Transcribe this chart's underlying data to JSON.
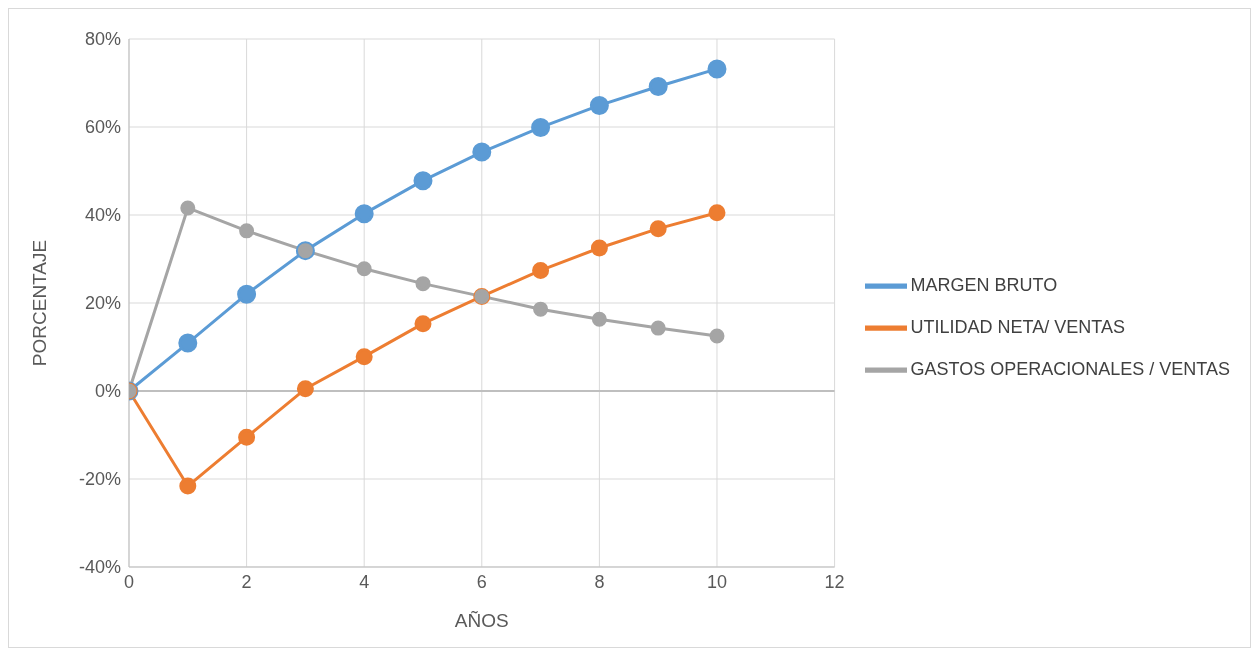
{
  "chart_data": {
    "type": "line",
    "xlabel": "AÑOS",
    "ylabel": "PORCENTAJE",
    "x": [
      0,
      1,
      2,
      3,
      4,
      5,
      6,
      7,
      8,
      9,
      10
    ],
    "series": [
      {
        "name": "MARGEN BRUTO",
        "color": "#5b9bd5",
        "values": [
          0,
          10.9,
          22.0,
          31.9,
          40.3,
          47.8,
          54.3,
          59.9,
          64.9,
          69.2,
          73.2
        ]
      },
      {
        "name": "UTILIDAD NETA/ VENTAS",
        "color": "#ed7d31",
        "values": [
          0,
          -21.6,
          -10.5,
          0.5,
          7.8,
          15.3,
          21.5,
          27.4,
          32.5,
          36.9,
          40.5
        ]
      },
      {
        "name": "GASTOS OPERACIONALES / VENTAS",
        "color": "#a5a5a5",
        "values": [
          0,
          41.6,
          36.4,
          31.9,
          27.8,
          24.4,
          21.5,
          18.6,
          16.3,
          14.3,
          12.5
        ]
      }
    ],
    "xlim": [
      0,
      12
    ],
    "xticks": [
      0,
      2,
      4,
      6,
      8,
      10,
      12
    ],
    "ylim": [
      -40,
      80
    ],
    "yticks": [
      {
        "value": -40,
        "label": "-40%"
      },
      {
        "value": -20,
        "label": "-20%"
      },
      {
        "value": 0,
        "label": "0%"
      },
      {
        "value": 20,
        "label": "20%"
      },
      {
        "value": 40,
        "label": "40%"
      },
      {
        "value": 60,
        "label": "60%"
      },
      {
        "value": 80,
        "label": "80%"
      }
    ],
    "grid": true,
    "legend": "right",
    "marker": "circle",
    "line_style": "solid"
  }
}
